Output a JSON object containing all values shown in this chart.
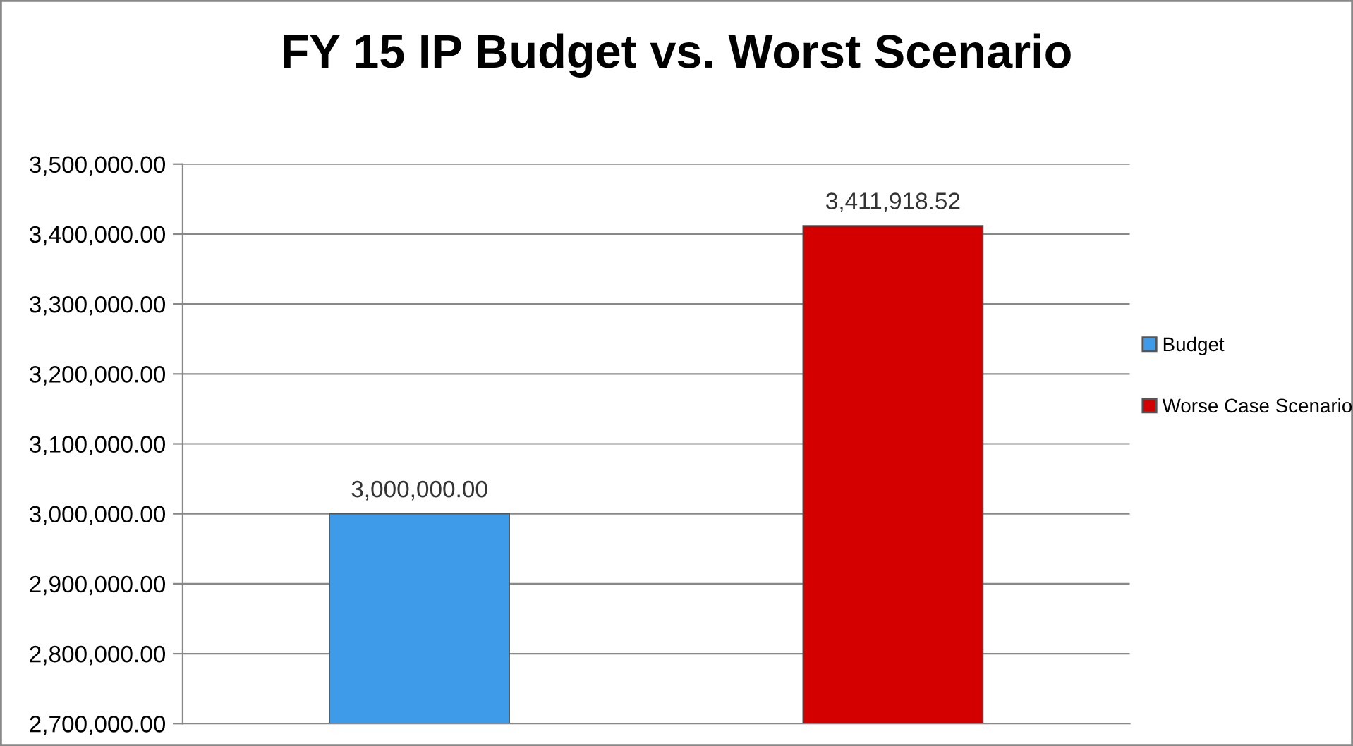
{
  "chart_data": {
    "type": "bar",
    "title": "FY 15 IP Budget vs. Worst Scenario",
    "categories": [
      null,
      null
    ],
    "series": [
      {
        "name": "Budget",
        "color": "#3d9be9",
        "values": [
          3000000.0,
          null
        ],
        "value_labels": [
          "3,000,000.00",
          null
        ]
      },
      {
        "name": "Worse Case Scenario",
        "color": "#d40000",
        "values": [
          null,
          3411918.52
        ],
        "value_labels": [
          null,
          "3,411,918.52"
        ]
      }
    ],
    "ylim": [
      2700000,
      3500000
    ],
    "yticks": [
      {
        "value": 2700000,
        "label": "2,700,000.00"
      },
      {
        "value": 2800000,
        "label": "2,800,000.00"
      },
      {
        "value": 2900000,
        "label": "2,900,000.00"
      },
      {
        "value": 3000000,
        "label": "3,000,000.00"
      },
      {
        "value": 3100000,
        "label": "3,100,000.00"
      },
      {
        "value": 3200000,
        "label": "3,200,000.00"
      },
      {
        "value": 3300000,
        "label": "3,300,000.00"
      },
      {
        "value": 3400000,
        "label": "3,400,000.00"
      },
      {
        "value": 3500000,
        "label": "3,500,000.00"
      }
    ],
    "grid": "y",
    "legend": "right"
  }
}
